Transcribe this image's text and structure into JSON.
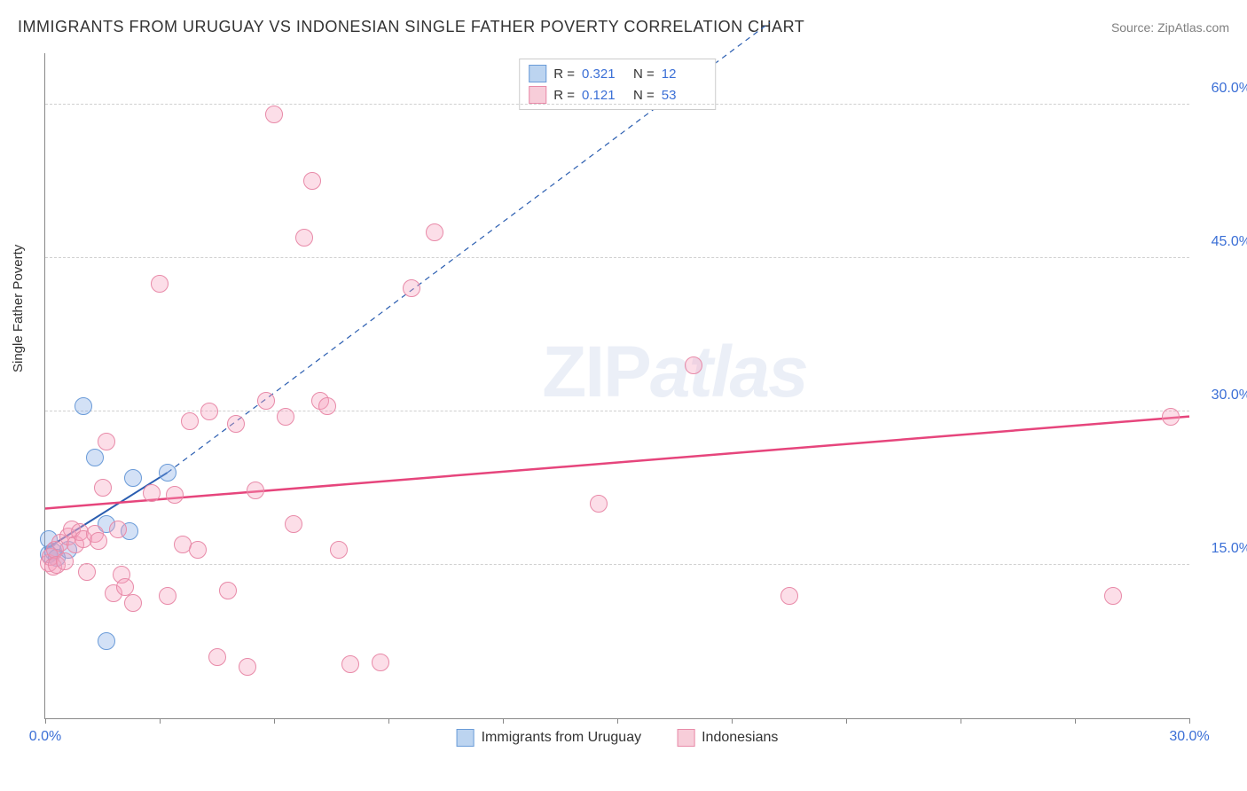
{
  "title": "IMMIGRANTS FROM URUGUAY VS INDONESIAN SINGLE FATHER POVERTY CORRELATION CHART",
  "source": "Source: ZipAtlas.com",
  "y_axis_label": "Single Father Poverty",
  "watermark": "ZIPatlas",
  "chart": {
    "type": "scatter",
    "background_color": "#ffffff",
    "grid_color": "#d0d0d0",
    "axis_color": "#888888",
    "tick_label_color": "#3b6fd6",
    "text_color": "#333333",
    "xlim": [
      0,
      30
    ],
    "ylim": [
      0,
      65
    ],
    "y_ticks": [
      15,
      30,
      45,
      60
    ],
    "y_tick_labels": [
      "15.0%",
      "30.0%",
      "45.0%",
      "60.0%"
    ],
    "x_ticks": [
      0,
      3,
      6,
      9,
      12,
      15,
      18,
      21,
      24,
      27,
      30
    ],
    "x_tick_labels_shown": {
      "0": "0.0%",
      "30": "30.0%"
    },
    "marker_radius": 9,
    "marker_stroke_width": 1.5,
    "series": [
      {
        "name": "Immigrants from Uruguay",
        "fill_color": "rgba(130,170,230,0.35)",
        "stroke_color": "#6a9bd8",
        "swatch_fill": "#bcd4f0",
        "swatch_border": "#6a9bd8",
        "R": "0.321",
        "N": "12",
        "trend": {
          "x1": 0,
          "y1": 16.5,
          "x2": 3.2,
          "y2": 24,
          "color": "#2a5db0",
          "width": 2,
          "dash": "none",
          "extend_x2": 19,
          "extend_y2": 68,
          "extend_dash": "6,5"
        },
        "points": [
          {
            "x": 0.1,
            "y": 16.0
          },
          {
            "x": 0.1,
            "y": 17.5
          },
          {
            "x": 0.2,
            "y": 16.3
          },
          {
            "x": 0.3,
            "y": 15.7
          },
          {
            "x": 0.6,
            "y": 16.5
          },
          {
            "x": 1.0,
            "y": 30.5
          },
          {
            "x": 1.3,
            "y": 25.5
          },
          {
            "x": 1.6,
            "y": 19.0
          },
          {
            "x": 1.6,
            "y": 7.5
          },
          {
            "x": 2.2,
            "y": 18.3
          },
          {
            "x": 2.3,
            "y": 23.5
          },
          {
            "x": 3.2,
            "y": 24.0
          }
        ]
      },
      {
        "name": "Indonesians",
        "fill_color": "rgba(245,160,190,0.35)",
        "stroke_color": "#e88aa8",
        "swatch_fill": "#f7cdd9",
        "swatch_border": "#e88aa8",
        "R": "0.121",
        "N": "53",
        "trend": {
          "x1": 0,
          "y1": 20.5,
          "x2": 30,
          "y2": 29.5,
          "color": "#e6457c",
          "width": 2.5,
          "dash": "none"
        },
        "points": [
          {
            "x": 0.1,
            "y": 15.2
          },
          {
            "x": 0.15,
            "y": 15.8
          },
          {
            "x": 0.2,
            "y": 14.8
          },
          {
            "x": 0.25,
            "y": 16.5
          },
          {
            "x": 0.3,
            "y": 15.0
          },
          {
            "x": 0.4,
            "y": 17.2
          },
          {
            "x": 0.5,
            "y": 15.3
          },
          {
            "x": 0.6,
            "y": 17.8
          },
          {
            "x": 0.7,
            "y": 18.5
          },
          {
            "x": 0.8,
            "y": 17.0
          },
          {
            "x": 0.9,
            "y": 18.2
          },
          {
            "x": 1.0,
            "y": 17.5
          },
          {
            "x": 1.1,
            "y": 14.3
          },
          {
            "x": 1.3,
            "y": 18.0
          },
          {
            "x": 1.4,
            "y": 17.3
          },
          {
            "x": 1.5,
            "y": 22.5
          },
          {
            "x": 1.6,
            "y": 27.0
          },
          {
            "x": 1.8,
            "y": 12.2
          },
          {
            "x": 1.9,
            "y": 18.5
          },
          {
            "x": 2.0,
            "y": 14.0
          },
          {
            "x": 2.1,
            "y": 12.8
          },
          {
            "x": 2.3,
            "y": 11.3
          },
          {
            "x": 2.8,
            "y": 22.0
          },
          {
            "x": 3.0,
            "y": 42.5
          },
          {
            "x": 3.2,
            "y": 12.0
          },
          {
            "x": 3.4,
            "y": 21.8
          },
          {
            "x": 3.6,
            "y": 17.0
          },
          {
            "x": 3.8,
            "y": 29.0
          },
          {
            "x": 4.0,
            "y": 16.5
          },
          {
            "x": 4.3,
            "y": 30.0
          },
          {
            "x": 4.5,
            "y": 6.0
          },
          {
            "x": 4.8,
            "y": 12.5
          },
          {
            "x": 5.0,
            "y": 28.8
          },
          {
            "x": 5.3,
            "y": 5.0
          },
          {
            "x": 5.5,
            "y": 22.3
          },
          {
            "x": 5.8,
            "y": 31.0
          },
          {
            "x": 6.0,
            "y": 59.0
          },
          {
            "x": 6.3,
            "y": 29.5
          },
          {
            "x": 6.5,
            "y": 19.0
          },
          {
            "x": 6.8,
            "y": 47.0
          },
          {
            "x": 7.0,
            "y": 52.5
          },
          {
            "x": 7.2,
            "y": 31.0
          },
          {
            "x": 7.4,
            "y": 30.5
          },
          {
            "x": 7.7,
            "y": 16.5
          },
          {
            "x": 8.0,
            "y": 5.3
          },
          {
            "x": 8.8,
            "y": 5.5
          },
          {
            "x": 9.6,
            "y": 42.0
          },
          {
            "x": 10.2,
            "y": 47.5
          },
          {
            "x": 14.5,
            "y": 21.0
          },
          {
            "x": 17.0,
            "y": 34.5
          },
          {
            "x": 19.5,
            "y": 12.0
          },
          {
            "x": 28.0,
            "y": 12.0
          },
          {
            "x": 29.5,
            "y": 29.5
          }
        ]
      }
    ]
  },
  "legend_stats": {
    "r_label": "R =",
    "n_label": "N ="
  }
}
